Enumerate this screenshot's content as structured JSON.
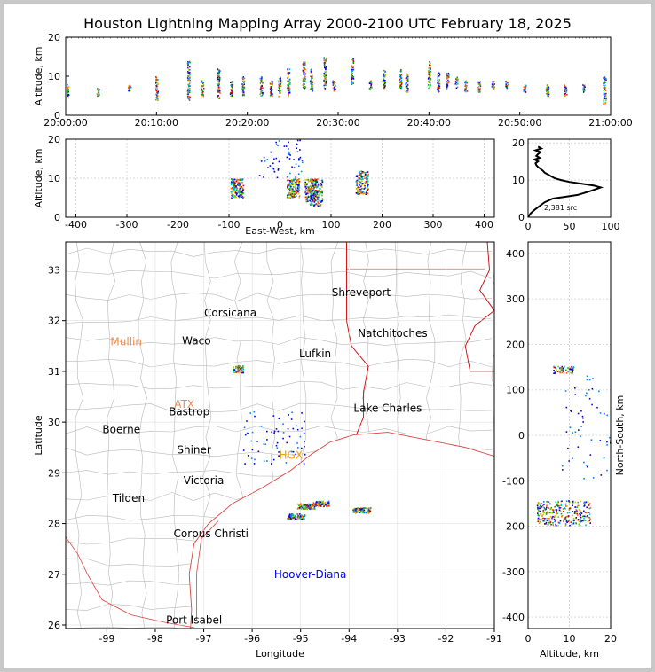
{
  "title": "Houston Lightning Mapping Array 2000-2100 UTC February 18, 2025",
  "chart_data": [
    {
      "id": "time-height",
      "type": "scatter",
      "ylabel": "Altitude, km",
      "x_ticks": [
        "20:00:00",
        "20:10:00",
        "20:20:00",
        "20:30:00",
        "20:40:00",
        "20:50:00",
        "21:00:00"
      ],
      "x_range_minutes": [
        0,
        60
      ],
      "y_ticks": [
        "0",
        "10",
        "20"
      ],
      "ylim": [
        0,
        20
      ],
      "clusters": [
        {
          "t": 0.2,
          "alt": [
            5,
            8
          ]
        },
        {
          "t": 3.5,
          "alt": [
            5,
            7
          ]
        },
        {
          "t": 7,
          "alt": [
            6,
            8
          ]
        },
        {
          "t": 10,
          "alt": [
            4,
            10
          ]
        },
        {
          "t": 13.5,
          "alt": [
            4,
            14
          ]
        },
        {
          "t": 15,
          "alt": [
            5,
            9
          ]
        },
        {
          "t": 16.8,
          "alt": [
            4,
            12
          ]
        },
        {
          "t": 18.2,
          "alt": [
            5,
            9
          ]
        },
        {
          "t": 19.5,
          "alt": [
            5,
            10
          ]
        },
        {
          "t": 21.5,
          "alt": [
            5,
            10
          ]
        },
        {
          "t": 22.6,
          "alt": [
            5,
            9
          ]
        },
        {
          "t": 23.5,
          "alt": [
            5,
            10
          ]
        },
        {
          "t": 24.5,
          "alt": [
            5,
            12
          ]
        },
        {
          "t": 26.2,
          "alt": [
            7,
            14
          ]
        },
        {
          "t": 27,
          "alt": [
            6,
            12
          ]
        },
        {
          "t": 28.5,
          "alt": [
            7,
            15
          ]
        },
        {
          "t": 29.5,
          "alt": [
            6,
            9
          ]
        },
        {
          "t": 31.5,
          "alt": [
            8,
            15
          ]
        },
        {
          "t": 33.5,
          "alt": [
            7,
            9
          ]
        },
        {
          "t": 35,
          "alt": [
            7,
            12
          ]
        },
        {
          "t": 36.8,
          "alt": [
            7,
            12
          ]
        },
        {
          "t": 37.5,
          "alt": [
            6,
            11
          ]
        },
        {
          "t": 40,
          "alt": [
            7,
            14
          ]
        },
        {
          "t": 41,
          "alt": [
            6,
            11
          ]
        },
        {
          "t": 42,
          "alt": [
            7,
            11
          ]
        },
        {
          "t": 43,
          "alt": [
            7,
            10
          ]
        },
        {
          "t": 44,
          "alt": [
            6,
            9
          ]
        },
        {
          "t": 45.5,
          "alt": [
            6,
            9
          ]
        },
        {
          "t": 47,
          "alt": [
            7,
            9
          ]
        },
        {
          "t": 48.5,
          "alt": [
            7,
            9
          ]
        },
        {
          "t": 50.5,
          "alt": [
            6,
            8
          ]
        },
        {
          "t": 53,
          "alt": [
            5,
            8
          ]
        },
        {
          "t": 55,
          "alt": [
            5,
            8
          ]
        },
        {
          "t": 57,
          "alt": [
            6,
            8
          ]
        },
        {
          "t": 59.3,
          "alt": [
            3,
            10
          ]
        }
      ]
    },
    {
      "id": "east-west-altitude",
      "type": "scatter",
      "xlabel": "East-West, km",
      "ylabel": "Altitude, km",
      "x_ticks": [
        "-400",
        "-300",
        "-200",
        "-100",
        "0",
        "100",
        "200",
        "300",
        "400"
      ],
      "xlim": [
        -420,
        420
      ],
      "y_ticks": [
        "0",
        "10",
        "20"
      ],
      "ylim": [
        0,
        20
      ],
      "clusters": [
        {
          "x": -85,
          "alt": [
            5,
            10
          ]
        },
        {
          "x": 25,
          "alt": [
            5,
            10
          ]
        },
        {
          "x": 60,
          "alt": [
            4,
            10
          ]
        },
        {
          "x": 70,
          "alt": [
            3,
            10
          ]
        },
        {
          "x": 160,
          "alt": [
            6,
            12
          ]
        },
        {
          "x": 0,
          "alt": [
            10,
            20
          ]
        }
      ]
    },
    {
      "id": "altitude-histogram",
      "type": "line",
      "x_ticks": [
        "0",
        "50",
        "100"
      ],
      "xlim": [
        0,
        100
      ],
      "y_ticks": [
        "0",
        "10",
        "20"
      ],
      "ylim": [
        0,
        21
      ],
      "annotation": "2,381 src",
      "series": [
        {
          "x": [
            0,
            3,
            8,
            14,
            20,
            30,
            45,
            60,
            75,
            88,
            80,
            65,
            50,
            40,
            32,
            28,
            24,
            20,
            18,
            15,
            12,
            10,
            9,
            12,
            8,
            14,
            10,
            12,
            15,
            9,
            16,
            12
          ],
          "y": [
            0,
            1,
            2,
            3,
            4,
            5,
            5.5,
            6,
            7,
            8,
            8.5,
            9,
            9.5,
            10,
            10.5,
            11,
            11.5,
            12,
            12.5,
            13,
            13.5,
            14,
            14.5,
            15,
            15.5,
            16,
            16.5,
            17,
            17.5,
            18,
            18.5,
            19
          ]
        }
      ]
    },
    {
      "id": "plan-view-map",
      "type": "scatter",
      "xlabel": "Longitude",
      "ylabel": "Latitude",
      "x_ticks": [
        "-99",
        "-98",
        "-97",
        "-96",
        "-95",
        "-94",
        "-93",
        "-92",
        "-91"
      ],
      "xlim": [
        -99.85,
        -91
      ],
      "y_ticks": [
        "26",
        "27",
        "28",
        "29",
        "30",
        "31",
        "32",
        "33"
      ],
      "ylim": [
        25.93,
        33.55
      ],
      "cities": [
        {
          "name": "Shreveport",
          "lon": -93.75,
          "lat": 32.55
        },
        {
          "name": "Corsicana",
          "lon": -96.45,
          "lat": 32.15
        },
        {
          "name": "Natchitoches",
          "lon": -93.1,
          "lat": 31.75
        },
        {
          "name": "Waco",
          "lon": -97.15,
          "lat": 31.6
        },
        {
          "name": "Lufkin",
          "lon": -94.7,
          "lat": 31.35
        },
        {
          "name": "Bastrop",
          "lon": -97.3,
          "lat": 30.2
        },
        {
          "name": "Lake Charles",
          "lon": -93.2,
          "lat": 30.27
        },
        {
          "name": "Boerne",
          "lon": -98.7,
          "lat": 29.85
        },
        {
          "name": "Shiner",
          "lon": -97.2,
          "lat": 29.45
        },
        {
          "name": "Victoria",
          "lon": -97.0,
          "lat": 28.85
        },
        {
          "name": "Tilden",
          "lon": -98.55,
          "lat": 28.5
        },
        {
          "name": "Corpus Christi",
          "lon": -96.85,
          "lat": 27.8
        },
        {
          "name": "Port Isabel",
          "lon": -97.2,
          "lat": 26.1
        }
      ],
      "radars": [
        {
          "name": "Mullin",
          "lon": -98.6,
          "lat": 31.58,
          "color": "#f08c50"
        },
        {
          "name": "ATX",
          "lon": -97.4,
          "lat": 30.35,
          "color": "#f08c50"
        },
        {
          "name": "HGX",
          "lon": -95.2,
          "lat": 29.35,
          "color": "#f0a000"
        }
      ],
      "other_labels": [
        {
          "name": "Hoover-Diana",
          "lon": -94.8,
          "lat": 27.0,
          "color": "#0000ff"
        }
      ],
      "storm_clusters": [
        {
          "lon": -96.3,
          "lat": 31.05
        },
        {
          "lon": -95.1,
          "lat": 28.15
        },
        {
          "lon": -94.9,
          "lat": 28.35
        },
        {
          "lon": -94.6,
          "lat": 28.4
        },
        {
          "lon": -93.75,
          "lat": 28.27
        },
        {
          "lon": -95.55,
          "lat": 29.7
        }
      ]
    },
    {
      "id": "altitude-north-south",
      "type": "scatter",
      "xlabel": "Altitude, km",
      "ylabel": "North-South, km",
      "x_ticks": [
        "0",
        "10",
        "20"
      ],
      "xlim": [
        0,
        20
      ],
      "y_ticks": [
        "-400",
        "-300",
        "-200",
        "-100",
        "0",
        "100",
        "200",
        "300",
        "400"
      ],
      "ylim": [
        -425,
        425
      ],
      "clusters": [
        {
          "ns": 145,
          "alt": [
            6,
            11
          ]
        },
        {
          "ns": -170,
          "alt": [
            2,
            15
          ]
        },
        {
          "ns": 20,
          "alt": [
            8,
            20
          ]
        }
      ]
    }
  ],
  "colors": {
    "frame": "#c8c8c8",
    "state_border": "#d00000",
    "county_border": "#b8b8b8",
    "coast": "#e04040",
    "grid": "#d8d8d8"
  }
}
